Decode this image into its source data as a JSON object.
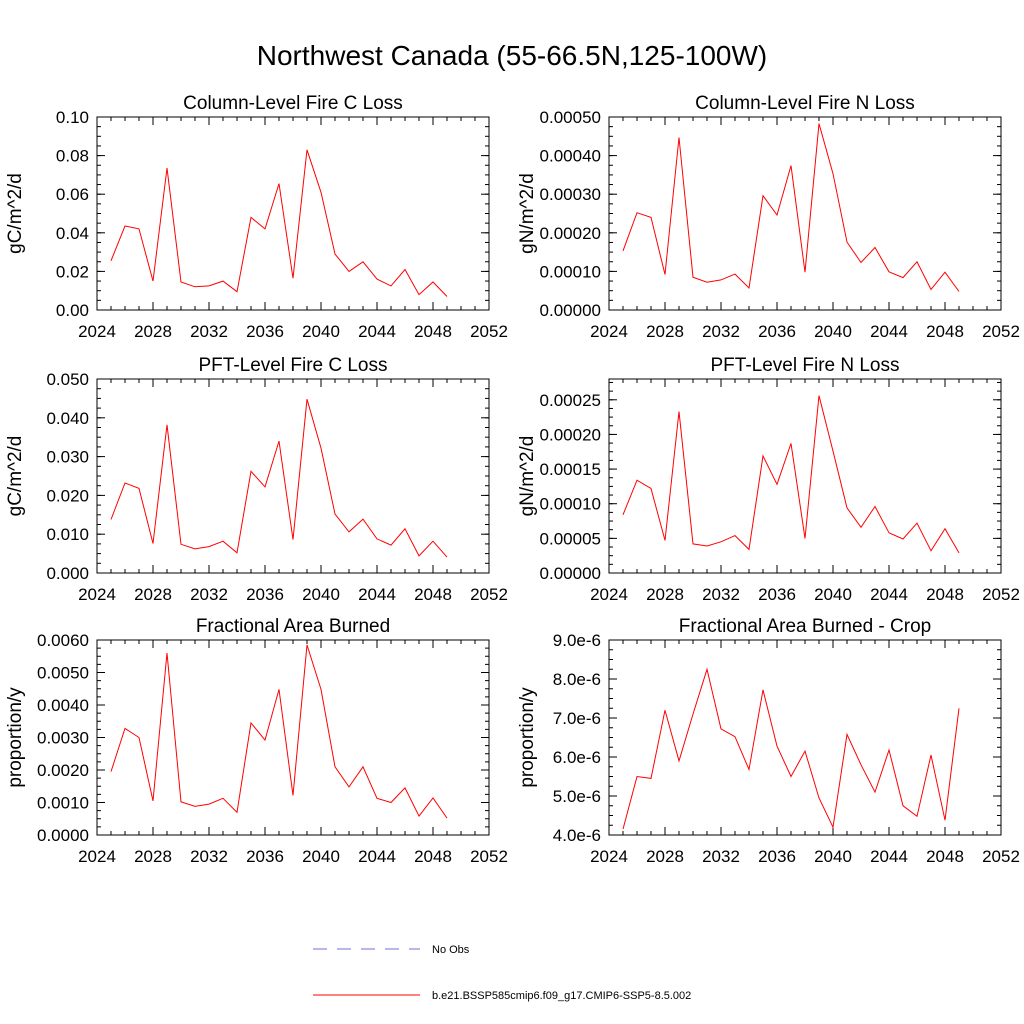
{
  "title": "Northwest Canada (55-66.5N,125-100W)",
  "colors": {
    "series": "#ff0000",
    "obs": "#6f6fcf",
    "axis": "#000000"
  },
  "legend": {
    "entries": [
      {
        "label": "No Obs",
        "style": "dashed",
        "color": "#6f6fcf"
      },
      {
        "label": "b.e21.BSSP585cmip6.f09_g17.CMIP6-SSP5-8.5.002",
        "style": "solid",
        "color": "#ff0000"
      }
    ]
  },
  "chart_data": [
    {
      "type": "line",
      "title": "Column-Level Fire C Loss",
      "ylabel": "gC/m^2/d",
      "xlim": [
        2024,
        2052
      ],
      "ylim": [
        0,
        0.1
      ],
      "xticks": [
        "2024",
        "2028",
        "2032",
        "2036",
        "2040",
        "2044",
        "2048",
        "2052"
      ],
      "yticks": [
        "0.00",
        "0.02",
        "0.04",
        "0.06",
        "0.08",
        "0.10"
      ],
      "x": [
        2025,
        2026,
        2027,
        2028,
        2029,
        2030,
        2031,
        2032,
        2033,
        2034,
        2035,
        2036,
        2037,
        2038,
        2039,
        2040,
        2041,
        2042,
        2043,
        2044,
        2045,
        2046,
        2047,
        2048,
        2049
      ],
      "series": [
        {
          "name": "b.e21.BSSP585cmip6.f09_g17.CMIP6-SSP5-8.5.002",
          "values": [
            0.0255,
            0.0435,
            0.042,
            0.015,
            0.0735,
            0.0145,
            0.012,
            0.0125,
            0.015,
            0.0095,
            0.048,
            0.042,
            0.0655,
            0.0165,
            0.083,
            0.061,
            0.029,
            0.02,
            0.025,
            0.016,
            0.0125,
            0.021,
            0.008,
            0.0145,
            0.007
          ]
        }
      ]
    },
    {
      "type": "line",
      "title": "Column-Level Fire N Loss",
      "ylabel": "gN/m^2/d",
      "xlim": [
        2024,
        2052
      ],
      "ylim": [
        0,
        0.0005
      ],
      "xticks": [
        "2024",
        "2028",
        "2032",
        "2036",
        "2040",
        "2044",
        "2048",
        "2052"
      ],
      "yticks": [
        "0.00000",
        "0.00010",
        "0.00020",
        "0.00030",
        "0.00040",
        "0.00050"
      ],
      "x": [
        2025,
        2026,
        2027,
        2028,
        2029,
        2030,
        2031,
        2032,
        2033,
        2034,
        2035,
        2036,
        2037,
        2038,
        2039,
        2040,
        2041,
        2042,
        2043,
        2044,
        2045,
        2046,
        2047,
        2048,
        2049
      ],
      "series": [
        {
          "name": "b.e21.BSSP585cmip6.f09_g17.CMIP6-SSP5-8.5.002",
          "values": [
            0.000153,
            0.000252,
            0.00024,
            9.2e-05,
            0.000447,
            8.5e-05,
            7.2e-05,
            7.8e-05,
            9.3e-05,
            5.7e-05,
            0.000296,
            0.000246,
            0.000374,
            9.8e-05,
            0.000483,
            0.000353,
            0.000176,
            0.000123,
            0.000162,
            9.9e-05,
            8.4e-05,
            0.000125,
            5.3e-05,
            9.8e-05,
            4.8e-05
          ]
        }
      ]
    },
    {
      "type": "line",
      "title": "PFT-Level Fire C Loss",
      "ylabel": "gC/m^2/d",
      "xlim": [
        2024,
        2052
      ],
      "ylim": [
        0,
        0.05
      ],
      "xticks": [
        "2024",
        "2028",
        "2032",
        "2036",
        "2040",
        "2044",
        "2048",
        "2052"
      ],
      "yticks": [
        "0.000",
        "0.010",
        "0.020",
        "0.030",
        "0.040",
        "0.050"
      ],
      "x": [
        2025,
        2026,
        2027,
        2028,
        2029,
        2030,
        2031,
        2032,
        2033,
        2034,
        2035,
        2036,
        2037,
        2038,
        2039,
        2040,
        2041,
        2042,
        2043,
        2044,
        2045,
        2046,
        2047,
        2048,
        2049
      ],
      "series": [
        {
          "name": "b.e21.BSSP585cmip6.f09_g17.CMIP6-SSP5-8.5.002",
          "values": [
            0.0138,
            0.0232,
            0.0218,
            0.0076,
            0.0382,
            0.0074,
            0.0062,
            0.0068,
            0.0082,
            0.0052,
            0.0262,
            0.0222,
            0.034,
            0.0086,
            0.0448,
            0.0322,
            0.0152,
            0.0106,
            0.0139,
            0.0088,
            0.0072,
            0.0114,
            0.0044,
            0.0082,
            0.0041
          ]
        }
      ]
    },
    {
      "type": "line",
      "title": "PFT-Level Fire N Loss",
      "ylabel": "gN/m^2/d",
      "xlim": [
        2024,
        2052
      ],
      "ylim": [
        0,
        0.00028
      ],
      "xticks": [
        "2024",
        "2028",
        "2032",
        "2036",
        "2040",
        "2044",
        "2048",
        "2052"
      ],
      "yticks": [
        "0.00000",
        "0.00005",
        "0.00010",
        "0.00015",
        "0.00020",
        "0.00025"
      ],
      "ytickvals": [
        0,
        5e-05,
        0.0001,
        0.00015,
        0.0002,
        0.00025
      ],
      "x": [
        2025,
        2026,
        2027,
        2028,
        2029,
        2030,
        2031,
        2032,
        2033,
        2034,
        2035,
        2036,
        2037,
        2038,
        2039,
        2040,
        2041,
        2042,
        2043,
        2044,
        2045,
        2046,
        2047,
        2048,
        2049
      ],
      "series": [
        {
          "name": "b.e21.BSSP585cmip6.f09_g17.CMIP6-SSP5-8.5.002",
          "values": [
            8.4e-05,
            0.000134,
            0.000122,
            4.7e-05,
            0.000233,
            4.2e-05,
            3.9e-05,
            4.5e-05,
            5.4e-05,
            3.4e-05,
            0.000169,
            0.000128,
            0.000187,
            5e-05,
            0.000256,
            0.000176,
            9.4e-05,
            6.6e-05,
            9.6e-05,
            5.8e-05,
            4.9e-05,
            7.2e-05,
            3.2e-05,
            6.4e-05,
            2.9e-05
          ]
        }
      ]
    },
    {
      "type": "line",
      "title": "Fractional Area Burned",
      "ylabel": "proportion/y",
      "xlim": [
        2024,
        2052
      ],
      "ylim": [
        0,
        0.006
      ],
      "xticks": [
        "2024",
        "2028",
        "2032",
        "2036",
        "2040",
        "2044",
        "2048",
        "2052"
      ],
      "yticks": [
        "0.0000",
        "0.0010",
        "0.0020",
        "0.0030",
        "0.0040",
        "0.0050",
        "0.0060"
      ],
      "x": [
        2025,
        2026,
        2027,
        2028,
        2029,
        2030,
        2031,
        2032,
        2033,
        2034,
        2035,
        2036,
        2037,
        2038,
        2039,
        2040,
        2041,
        2042,
        2043,
        2044,
        2045,
        2046,
        2047,
        2048,
        2049
      ],
      "series": [
        {
          "name": "b.e21.BSSP585cmip6.f09_g17.CMIP6-SSP5-8.5.002",
          "values": [
            0.00195,
            0.00328,
            0.003,
            0.00105,
            0.0056,
            0.00102,
            0.00088,
            0.00095,
            0.00113,
            0.0007,
            0.00345,
            0.00292,
            0.00448,
            0.00122,
            0.00585,
            0.00448,
            0.0021,
            0.00148,
            0.0021,
            0.00113,
            0.001,
            0.00145,
            0.00058,
            0.00114,
            0.00052
          ]
        }
      ]
    },
    {
      "type": "line",
      "title": "Fractional Area Burned - Crop",
      "ylabel": "proportion/y",
      "xlim": [
        2024,
        2052
      ],
      "ylim": [
        4e-06,
        9e-06
      ],
      "xticks": [
        "2024",
        "2028",
        "2032",
        "2036",
        "2040",
        "2044",
        "2048",
        "2052"
      ],
      "yticks": [
        "4.0e-6",
        "5.0e-6",
        "6.0e-6",
        "7.0e-6",
        "8.0e-6",
        "9.0e-6"
      ],
      "x": [
        2025,
        2026,
        2027,
        2028,
        2029,
        2030,
        2031,
        2032,
        2033,
        2034,
        2035,
        2036,
        2037,
        2038,
        2039,
        2040,
        2041,
        2042,
        2043,
        2044,
        2045,
        2046,
        2047,
        2048,
        2049
      ],
      "series": [
        {
          "name": "b.e21.BSSP585cmip6.f09_g17.CMIP6-SSP5-8.5.002",
          "values": [
            4.15e-06,
            5.5e-06,
            5.45e-06,
            7.2e-06,
            5.9e-06,
            7.1e-06,
            8.25e-06,
            6.72e-06,
            6.52e-06,
            5.68e-06,
            7.72e-06,
            6.28e-06,
            5.5e-06,
            6.15e-06,
            4.95e-06,
            4.2e-06,
            6.58e-06,
            5.8e-06,
            5.1e-06,
            6.18e-06,
            4.75e-06,
            4.48e-06,
            6.05e-06,
            4.38e-06,
            7.25e-06
          ]
        }
      ]
    }
  ]
}
